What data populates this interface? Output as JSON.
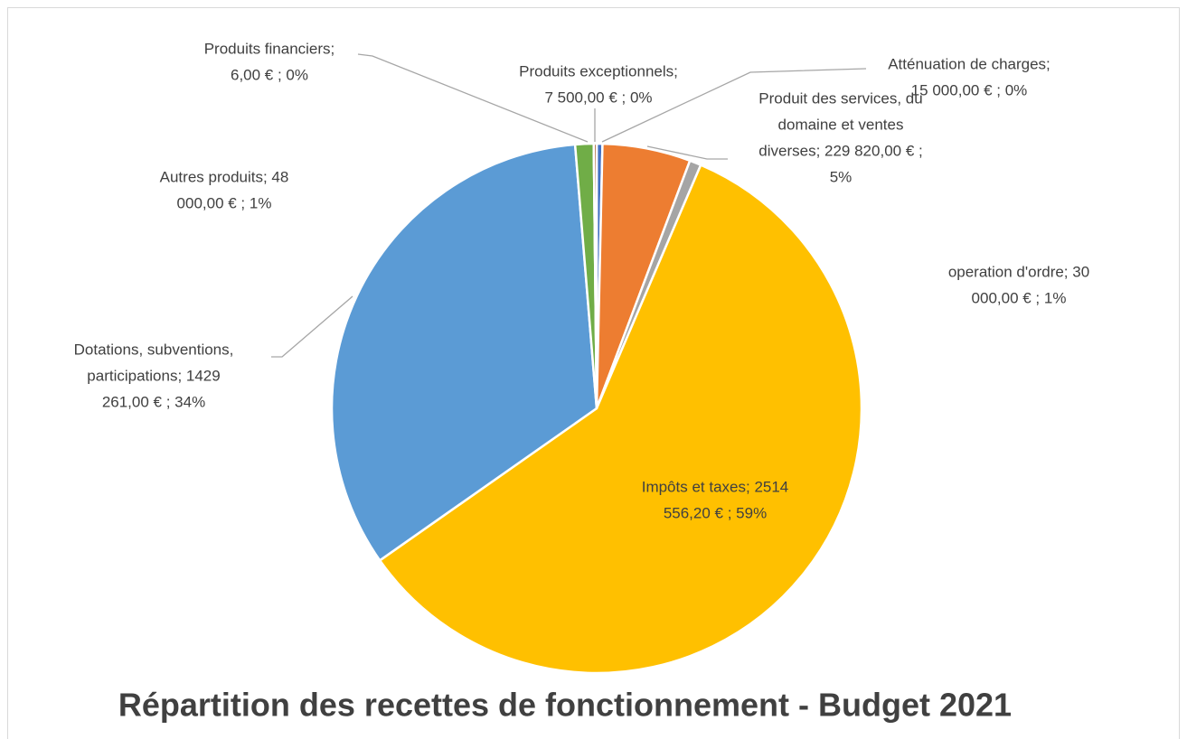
{
  "chart_data": {
    "type": "pie",
    "title": "Répartition des recettes de fonctionnement - Budget 2021",
    "categories": [
      "Atténuation de charges",
      "Produit des services, du domaine et ventes diverses",
      "operation d'ordre",
      "Impôts et taxes",
      "Dotations, subventions, participations",
      "Autres produits",
      "Produits financiers",
      "Produits exceptionnels"
    ],
    "values": [
      15000,
      229820,
      30000,
      2514556.2,
      1429261,
      48000,
      6,
      7500
    ],
    "value_labels": [
      [
        "Atténuation de charges;",
        "15 000,00 € ; 0%"
      ],
      [
        "Produit des services, du",
        "domaine et ventes",
        "diverses;  229 820,00 € ;",
        "5%"
      ],
      [
        "operation d'ordre;  30",
        "000,00 € ; 1%"
      ],
      [
        "Impôts et taxes;  2514",
        "556,20 € ; 59%"
      ],
      [
        "Dotations, subventions,",
        "participations;  1429",
        "261,00 € ; 34%"
      ],
      [
        "Autres produits;  48",
        "000,00 € ; 1%"
      ],
      [
        "Produits financiers;",
        "6,00 € ; 0%"
      ],
      [
        "Produits exceptionnels;",
        "7 500,00 € ; 0%"
      ]
    ],
    "colors": [
      "#4472c4",
      "#ed7d31",
      "#a5a5a5",
      "#ffc000",
      "#5b9bd5",
      "#70ad47",
      "#264478",
      "#9e480e"
    ]
  }
}
